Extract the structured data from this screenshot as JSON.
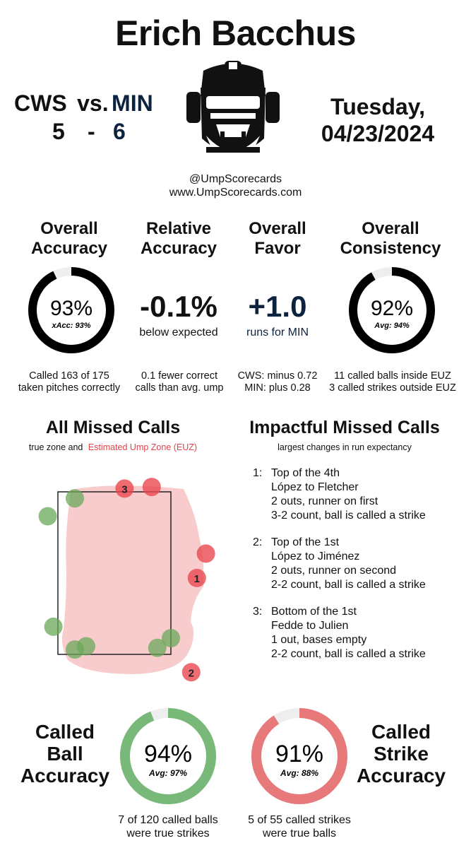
{
  "umpire_name": "Erich Bacchus",
  "game": {
    "away": "CWS",
    "vs": "vs.",
    "home": "MIN",
    "away_score": "5",
    "dash": "-",
    "home_score": "6",
    "day": "Tuesday,",
    "date": "04/23/2024"
  },
  "credits": {
    "handle": "@UmpScorecards",
    "site": "www.UmpScorecards.com"
  },
  "stats": {
    "overall_accuracy": {
      "title_line1": "Overall",
      "title_line2": "Accuracy",
      "value": "93%",
      "subvalue": "xAcc: 93%",
      "fraction": 0.93,
      "footer_line1": "Called 163 of 175",
      "footer_line2": "taken pitches correctly"
    },
    "relative_accuracy": {
      "title_line1": "Relative",
      "title_line2": "Accuracy",
      "value": "-0.1%",
      "caption": "below expected",
      "footer_line1": "0.1 fewer correct",
      "footer_line2": "calls than avg. ump"
    },
    "overall_favor": {
      "title_line1": "Overall",
      "title_line2": "Favor",
      "value": "+1.0",
      "caption": "runs for MIN",
      "footer_line1": "CWS: minus 0.72",
      "footer_line2": "MIN: plus 0.28"
    },
    "overall_consistency": {
      "title_line1": "Overall",
      "title_line2": "Consistency",
      "value": "92%",
      "subvalue": "Avg: 94%",
      "fraction": 0.92,
      "footer_line1": "11 called balls inside EUZ",
      "footer_line2": "3 called strikes outside EUZ"
    }
  },
  "missed_calls": {
    "title": "All Missed Calls",
    "legend_prefix": "true zone and",
    "legend_euz": "Estimated Ump Zone (EUZ)"
  },
  "impactful": {
    "title": "Impactful Missed Calls",
    "subtitle": "largest changes in run expectancy",
    "items": [
      {
        "num": "1:",
        "inning": "Top of the 4th",
        "matchup": "López to Fletcher",
        "situation": "2 outs, runner on first",
        "count_call": "3-2 count, ball is called a strike"
      },
      {
        "num": "2:",
        "inning": "Top of the 1st",
        "matchup": "López to Jiménez",
        "situation": "2 outs, runner on second",
        "count_call": "2-2 count, ball is called a strike"
      },
      {
        "num": "3:",
        "inning": "Bottom of the 1st",
        "matchup": "Fedde to Julien",
        "situation": "1 out, bases empty",
        "count_call": "2-2 count, ball is called a strike"
      }
    ]
  },
  "called_ball": {
    "title_line1": "Called",
    "title_line2": "Ball",
    "title_line3": "Accuracy",
    "value": "94%",
    "subvalue": "Avg: 97%",
    "fraction": 0.94,
    "footer_line1": "7 of 120 called balls",
    "footer_line2": "were true strikes"
  },
  "called_strike": {
    "title_line1": "Called",
    "title_line2": "Strike",
    "title_line3": "Accuracy",
    "value": "91%",
    "subvalue": "Avg: 88%",
    "fraction": 0.91,
    "footer_line1": "5 of 55 called strikes",
    "footer_line2": "were true balls"
  },
  "colors": {
    "ring_black": "#000000",
    "ring_green": "#78b878",
    "ring_red": "#e8797b",
    "euz_fill": "#f8cccc",
    "missed_ball_green": "#6aa85a",
    "missed_strike_red": "#e84850",
    "navy": "#0c2340"
  },
  "chart_data": {
    "type": "scatter",
    "zone_units": "normalized strike zone: x from 0 (left edge) to 1 (right edge), y from 0 (bottom) to 1 (top)",
    "xlim": [
      -0.5,
      1.45
    ],
    "ylim": [
      -0.3,
      1.1
    ],
    "series": [
      {
        "name": "",
        "kind": "balls called strikes",
        "color": "#e84850",
        "points": [
          {
            "x": 1.31,
            "y": 0.62,
            "label": ""
          },
          {
            "x": 1.23,
            "y": 0.47,
            "label": "1"
          },
          {
            "x": 1.18,
            "y": -0.11,
            "label": "2"
          },
          {
            "x": 0.59,
            "y": 1.02,
            "label": "3"
          },
          {
            "x": 0.83,
            "y": 1.03,
            "label": ""
          }
        ]
      },
      {
        "name": "",
        "kind": "strikes called balls",
        "color": "#6aa85a",
        "points": [
          {
            "x": 0.15,
            "y": 0.96,
            "label": ""
          },
          {
            "x": -0.09,
            "y": 0.85,
            "label": ""
          },
          {
            "x": -0.04,
            "y": 0.17,
            "label": ""
          },
          {
            "x": 0.15,
            "y": 0.03,
            "label": ""
          },
          {
            "x": 0.25,
            "y": 0.05,
            "label": ""
          },
          {
            "x": 0.88,
            "y": 0.04,
            "label": ""
          },
          {
            "x": 1.0,
            "y": 0.1,
            "label": ""
          }
        ]
      }
    ]
  }
}
